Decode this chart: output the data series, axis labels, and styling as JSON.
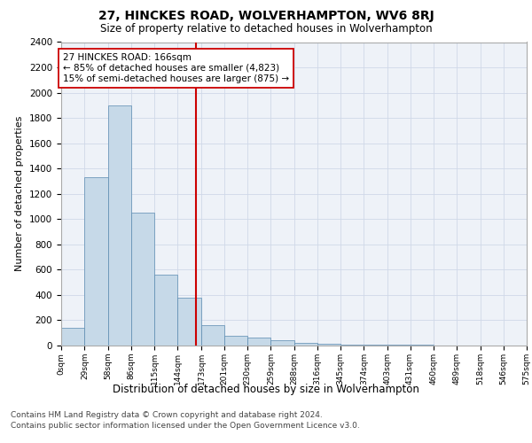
{
  "title": "27, HINCKES ROAD, WOLVERHAMPTON, WV6 8RJ",
  "subtitle": "Size of property relative to detached houses in Wolverhampton",
  "xlabel": "Distribution of detached houses by size in Wolverhampton",
  "ylabel": "Number of detached properties",
  "bin_edges": [
    0,
    29,
    58,
    86,
    115,
    144,
    173,
    201,
    230,
    259,
    288,
    316,
    345,
    374,
    403,
    431,
    460,
    489,
    518,
    546,
    575
  ],
  "bin_labels": [
    "0sqm",
    "29sqm",
    "58sqm",
    "86sqm",
    "115sqm",
    "144sqm",
    "173sqm",
    "201sqm",
    "230sqm",
    "259sqm",
    "288sqm",
    "316sqm",
    "345sqm",
    "374sqm",
    "403sqm",
    "431sqm",
    "460sqm",
    "489sqm",
    "518sqm",
    "546sqm",
    "575sqm"
  ],
  "bar_heights": [
    140,
    1330,
    1900,
    1050,
    560,
    380,
    160,
    80,
    60,
    40,
    20,
    15,
    10,
    8,
    5,
    4,
    3,
    2,
    1,
    1
  ],
  "bar_color": "#c6d9e8",
  "bar_edge_color": "#5a8ab0",
  "property_value": 166,
  "vline_color": "#cc0000",
  "annotation_line1": "27 HINCKES ROAD: 166sqm",
  "annotation_line2": "← 85% of detached houses are smaller (4,823)",
  "annotation_line3": "15% of semi-detached houses are larger (875) →",
  "annotation_box_color": "white",
  "annotation_box_edge": "#cc0000",
  "ylim": [
    0,
    2400
  ],
  "yticks": [
    0,
    200,
    400,
    600,
    800,
    1000,
    1200,
    1400,
    1600,
    1800,
    2000,
    2200,
    2400
  ],
  "grid_color": "#d0d8e8",
  "footnote1": "Contains HM Land Registry data © Crown copyright and database right 2024.",
  "footnote2": "Contains public sector information licensed under the Open Government Licence v3.0.",
  "bg_color": "#eef2f8"
}
